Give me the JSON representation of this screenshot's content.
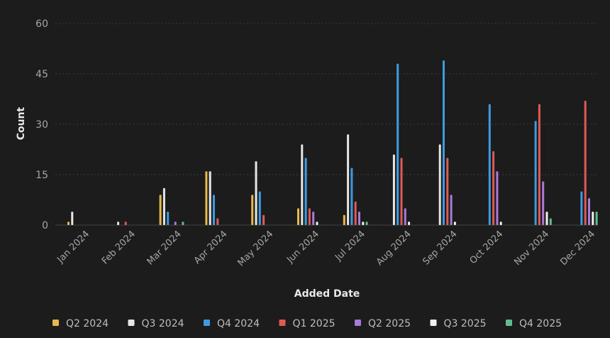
{
  "chart_data": {
    "type": "bar",
    "title": "",
    "xlabel": "Added Date",
    "ylabel": "Count",
    "ylim": [
      0,
      60
    ],
    "yticks": [
      0,
      15,
      30,
      45,
      60
    ],
    "grid": true,
    "legend_position": "bottom",
    "categories": [
      "Jan 2024",
      "Feb 2024",
      "Mar 2024",
      "Apr 2024",
      "May 2024",
      "Jun 2024",
      "Jul 2024",
      "Aug 2024",
      "Sep 2024",
      "Oct 2024",
      "Nov 2024",
      "Dec 2024"
    ],
    "series": [
      {
        "name": "Q2 2024",
        "color": "#e8b84a",
        "values": [
          1,
          0,
          9,
          16,
          9,
          5,
          3,
          0,
          0,
          0,
          0,
          0
        ]
      },
      {
        "name": "Q3 2024",
        "color": "#e6e6e6",
        "values": [
          4,
          1,
          11,
          16,
          19,
          24,
          27,
          21,
          24,
          0,
          0,
          0
        ]
      },
      {
        "name": "Q4 2024",
        "color": "#3d9be0",
        "values": [
          0,
          0,
          4,
          9,
          10,
          20,
          17,
          48,
          49,
          36,
          31,
          10
        ]
      },
      {
        "name": "Q1 2025",
        "color": "#e05a55",
        "values": [
          0,
          1,
          0,
          2,
          3,
          5,
          7,
          20,
          20,
          22,
          36,
          37
        ]
      },
      {
        "name": "Q2 2025",
        "color": "#a97ad8",
        "values": [
          0,
          0,
          1,
          0,
          0,
          4,
          4,
          5,
          9,
          16,
          13,
          8
        ]
      },
      {
        "name": "Q3 2025",
        "color": "#f0f0f0",
        "values": [
          0,
          0,
          0,
          0,
          0,
          1,
          1,
          1,
          1,
          1,
          4,
          4
        ]
      },
      {
        "name": "Q4 2025",
        "color": "#5fbf8a",
        "values": [
          0,
          0,
          1,
          0,
          0,
          0,
          1,
          0,
          0,
          0,
          2,
          4
        ]
      }
    ]
  }
}
